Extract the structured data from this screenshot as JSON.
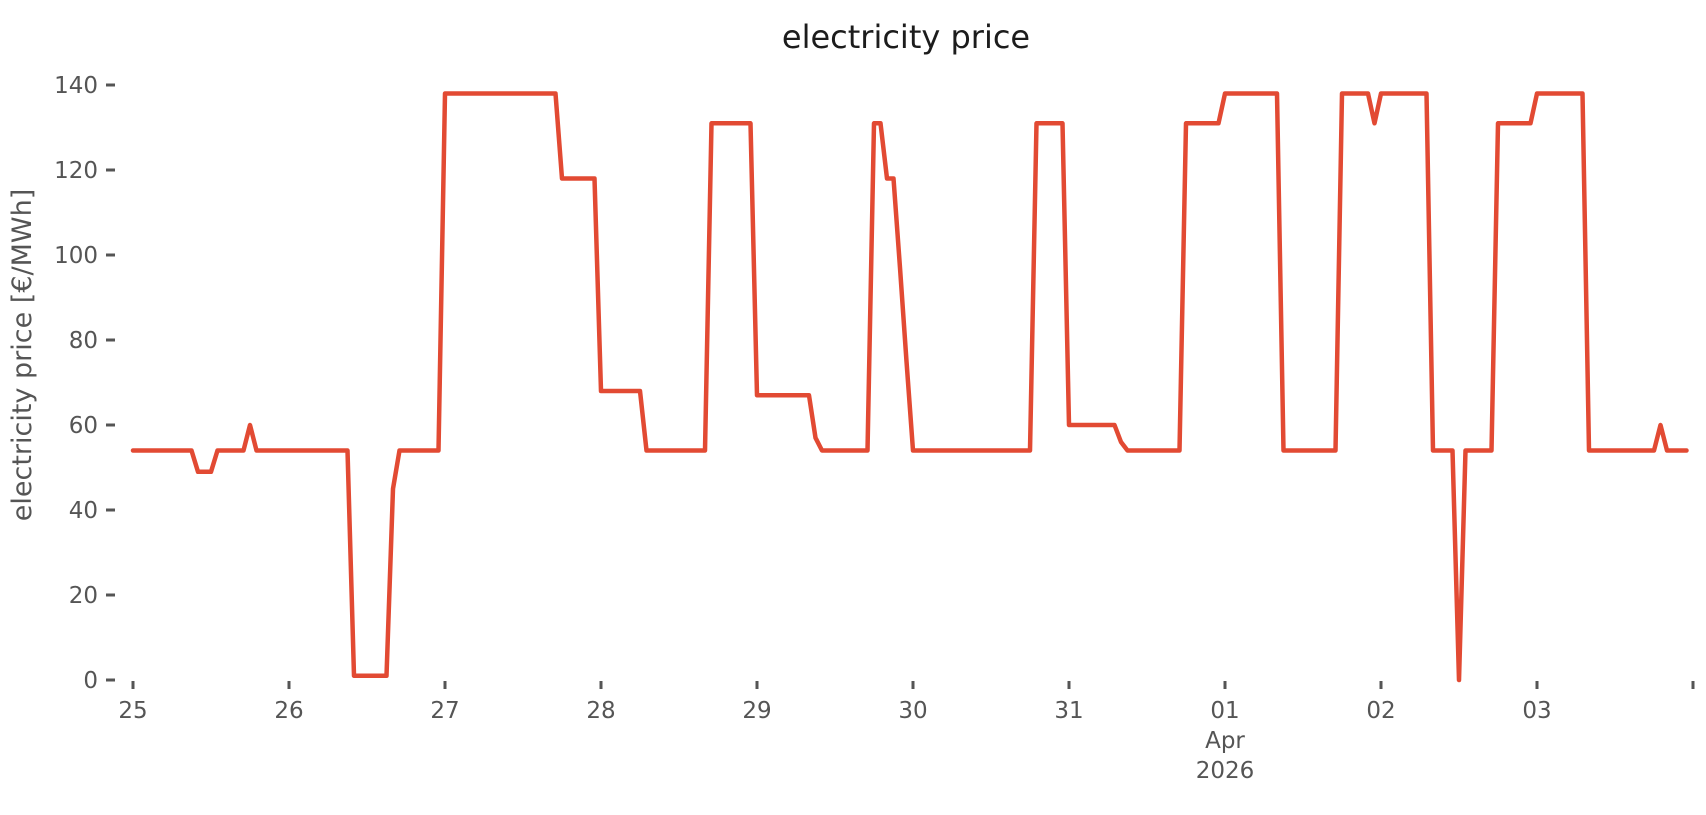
{
  "chart": {
    "title": "electricity price",
    "ylabel": "electricity price [€/MWh]",
    "colors": {
      "line": "#e24a33",
      "tick_text": "#555555",
      "tick_mark": "#555555",
      "title_text": "#1c1c1c",
      "background": "#ffffff"
    }
  },
  "chart_data": {
    "type": "line",
    "title": "electricity price",
    "xlabel": "",
    "ylabel": "electricity price [€/MWh]",
    "legend": null,
    "grid": false,
    "ylim": [
      0,
      140
    ],
    "y_ticks": [
      0,
      20,
      40,
      60,
      80,
      100,
      120,
      140
    ],
    "x_ticks": [
      {
        "day": 0,
        "label": "25"
      },
      {
        "day": 1,
        "label": "26"
      },
      {
        "day": 2,
        "label": "27"
      },
      {
        "day": 3,
        "label": "28"
      },
      {
        "day": 4,
        "label": "29"
      },
      {
        "day": 5,
        "label": "30"
      },
      {
        "day": 6,
        "label": "31"
      },
      {
        "day": 7,
        "label": "01"
      },
      {
        "day": 8,
        "label": "02"
      },
      {
        "day": 9,
        "label": "03"
      },
      {
        "day": 10,
        "label": ""
      }
    ],
    "x_sublabel": {
      "day": 7,
      "lines": [
        "Apr",
        "2026"
      ]
    },
    "x_unit": "hours since Mar 25 2026 00:00, hourly resolution",
    "xlim_hours": [
      0,
      239
    ],
    "series": [
      {
        "name": "electricity price",
        "start_hour": 0,
        "values": [
          54,
          54,
          54,
          54,
          54,
          54,
          54,
          54,
          54,
          54,
          49,
          49,
          49,
          54,
          54,
          54,
          54,
          54,
          60,
          54,
          54,
          54,
          54,
          54,
          54,
          54,
          54,
          54,
          54,
          54,
          54,
          54,
          54,
          54,
          1,
          1,
          1,
          1,
          1,
          1,
          45,
          54,
          54,
          54,
          54,
          54,
          54,
          54,
          138,
          138,
          138,
          138,
          138,
          138,
          138,
          138,
          138,
          138,
          138,
          138,
          138,
          138,
          138,
          138,
          138,
          138,
          118,
          118,
          118,
          118,
          118,
          118,
          68,
          68,
          68,
          68,
          68,
          68,
          68,
          54,
          54,
          54,
          54,
          54,
          54,
          54,
          54,
          54,
          54,
          131,
          131,
          131,
          131,
          131,
          131,
          131,
          67,
          67,
          67,
          67,
          67,
          67,
          67,
          67,
          67,
          57,
          54,
          54,
          54,
          54,
          54,
          54,
          54,
          54,
          131,
          131,
          118,
          118,
          97,
          75,
          54,
          54,
          54,
          54,
          54,
          54,
          54,
          54,
          54,
          54,
          54,
          54,
          54,
          54,
          54,
          54,
          54,
          54,
          54,
          131,
          131,
          131,
          131,
          131,
          60,
          60,
          60,
          60,
          60,
          60,
          60,
          60,
          56,
          54,
          54,
          54,
          54,
          54,
          54,
          54,
          54,
          54,
          131,
          131,
          131,
          131,
          131,
          131,
          138,
          138,
          138,
          138,
          138,
          138,
          138,
          138,
          138,
          54,
          54,
          54,
          54,
          54,
          54,
          54,
          54,
          54,
          138,
          138,
          138,
          138,
          138,
          131,
          138,
          138,
          138,
          138,
          138,
          138,
          138,
          138,
          54,
          54,
          54,
          54,
          0,
          54,
          54,
          54,
          54,
          54,
          131,
          131,
          131,
          131,
          131,
          131,
          138,
          138,
          138,
          138,
          138,
          138,
          138,
          138,
          54,
          54,
          54,
          54,
          54,
          54,
          54,
          54,
          54,
          54,
          54,
          60,
          54,
          54,
          54,
          54
        ]
      }
    ]
  }
}
